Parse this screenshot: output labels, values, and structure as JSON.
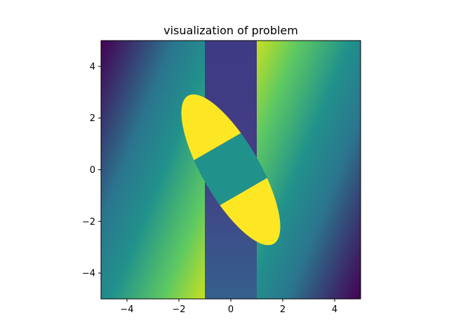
{
  "chart_data": {
    "type": "heatmap",
    "title": "visualization of problem",
    "xlabel": "",
    "ylabel": "",
    "xlim": [
      -5,
      5
    ],
    "ylim": [
      -5,
      5
    ],
    "aspect": "equal",
    "grid": false,
    "colormap": "viridis",
    "x_ticks": [
      -4,
      -2,
      0,
      2,
      4
    ],
    "y_ticks": [
      -4,
      -2,
      0,
      2,
      4
    ],
    "x_tick_labels": [
      "−4",
      "−2",
      "0",
      "2",
      "4"
    ],
    "y_tick_labels": [
      "−4",
      "−2",
      "0",
      "2",
      "4"
    ],
    "regions": [
      {
        "name": "left",
        "x_range": [
          -5,
          -1
        ]
      },
      {
        "name": "middle",
        "x_range": [
          -1,
          1
        ]
      },
      {
        "name": "right",
        "x_range": [
          1,
          5
        ]
      }
    ],
    "ellipse": {
      "center": [
        0,
        0
      ],
      "semi_major": 3.3,
      "semi_minor": 1.1,
      "angle_deg": -60,
      "fill_outside_middle": "#fde725",
      "fill_inside_middle": "#21918c"
    }
  }
}
